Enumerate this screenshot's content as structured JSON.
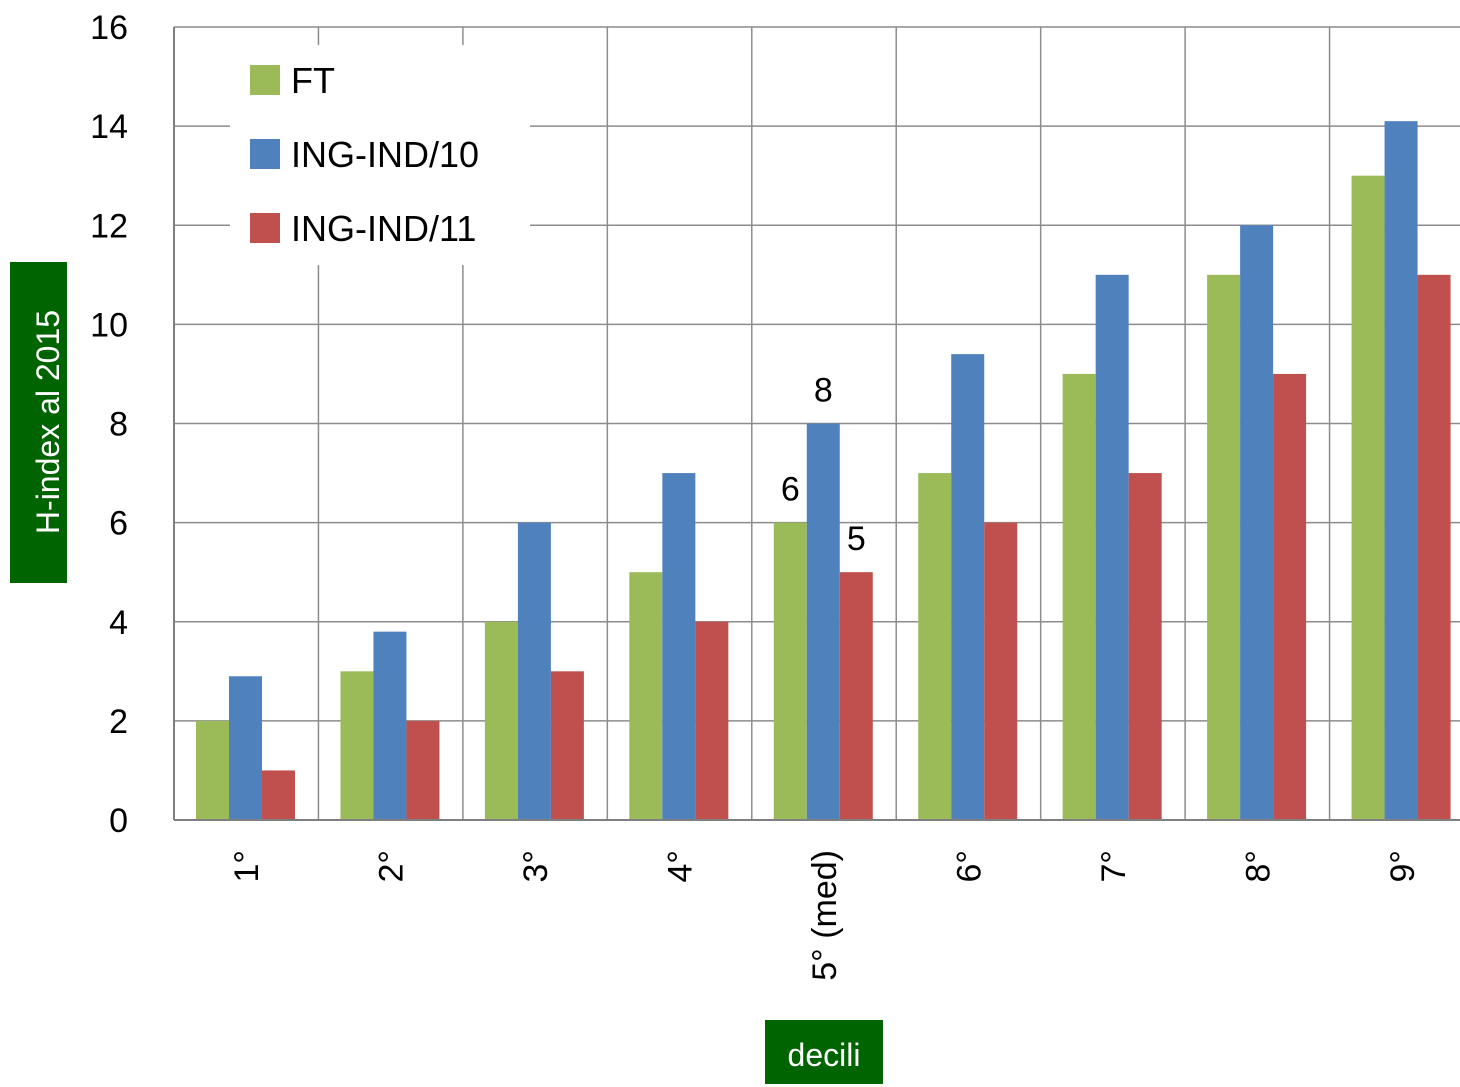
{
  "chart_data": {
    "type": "bar",
    "title": "",
    "xlabel": "decili",
    "ylabel": "H-index al 2015",
    "ylim": [
      0,
      16
    ],
    "yticks": [
      0,
      2,
      4,
      6,
      8,
      10,
      12,
      14,
      16
    ],
    "grid": true,
    "legend_position": "top-left",
    "categories": [
      "1°",
      "2°",
      "3°",
      "4°",
      "5° (med)",
      "6°",
      "7°",
      "8°",
      "9°"
    ],
    "series": [
      {
        "name": "FT",
        "color": "#9BBB59",
        "values": [
          2,
          3,
          4,
          5,
          6,
          7,
          9,
          11,
          13
        ]
      },
      {
        "name": "ING-IND/10",
        "color": "#4F81BD",
        "values": [
          2.9,
          3.8,
          6,
          7,
          8,
          9.4,
          11,
          12,
          14.1
        ]
      },
      {
        "name": "ING-IND/11",
        "color": "#C0504D",
        "values": [
          1,
          2,
          3,
          4,
          5,
          6,
          7,
          9,
          11
        ]
      }
    ],
    "data_labels": [
      {
        "series": 0,
        "category": 4,
        "text": "6"
      },
      {
        "series": 1,
        "category": 4,
        "text": "8"
      },
      {
        "series": 2,
        "category": 4,
        "text": "5"
      }
    ]
  }
}
